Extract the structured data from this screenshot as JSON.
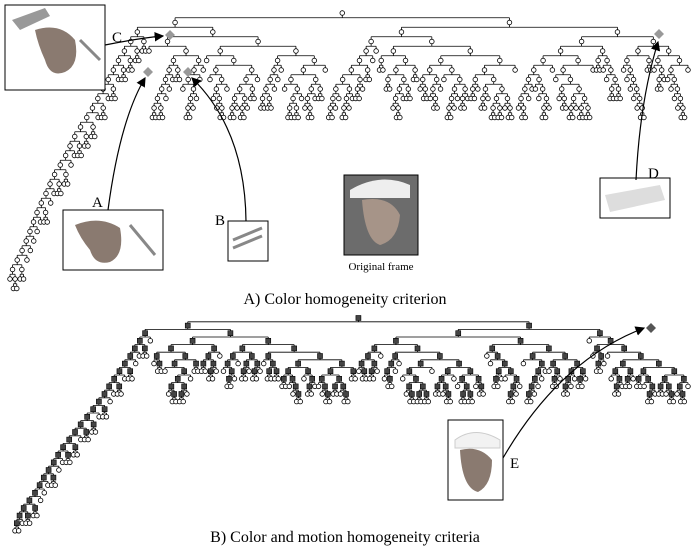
{
  "labels": {
    "c": "C",
    "a": "A",
    "b": "B",
    "d": "D",
    "e": "E"
  },
  "original_frame": "Original frame",
  "captions": {
    "top": "A) Color homogeneity criterion",
    "bottom": "B) Color and motion homogeneity criteria"
  }
}
